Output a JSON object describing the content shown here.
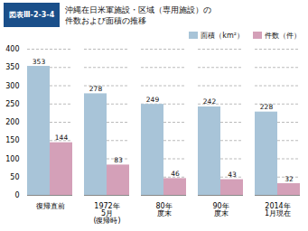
{
  "chart_data": {
    "type": "bar",
    "title": "沖縄在日米軍施設・区域（専用施設）の\n件数および面積の推移",
    "annotations": [
      "図表Ⅲ-2-3-4"
    ],
    "categories": [
      "復帰直前",
      "1972年\n5月\n(復帰時)",
      "80年\n度末",
      "90年\n度末",
      "2014年\n1月現在"
    ],
    "series": [
      {
        "name": "面積（km²）",
        "color": "#a8c4d8",
        "values": [
          353,
          278,
          249,
          242,
          228
        ]
      },
      {
        "name": "件数（件）",
        "color": "#d4a0b8",
        "values": [
          144,
          83,
          46,
          43,
          32
        ]
      }
    ],
    "ylim": [
      0,
      400
    ],
    "yticks": [
      0,
      50,
      100,
      150,
      200,
      250,
      300,
      350,
      400
    ],
    "grid": true,
    "legend": "upper right",
    "data_labels": true
  }
}
